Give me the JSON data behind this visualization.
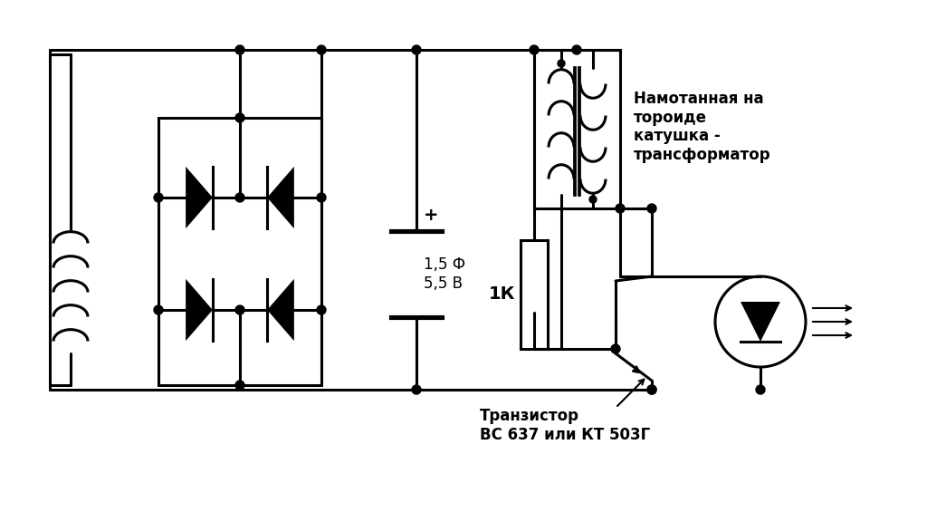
{
  "bg_color": "#ffffff",
  "line_color": "#000000",
  "line_width": 2.2,
  "label_transformer": "Намотанная на\nтороиде\nкатушка -\nтрансформатор",
  "label_transistor": "Транзистор\nВС 637 или КТ 503Г",
  "label_resistor": "1К",
  "label_capacitor": "1,5 Ф\n5,5 В",
  "label_plus": "+",
  "font_size_main": 12,
  "font_size_label": 11
}
